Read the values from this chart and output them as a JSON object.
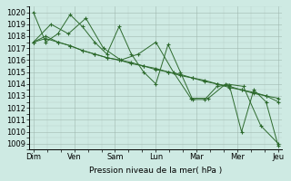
{
  "background_color": "#ceeae3",
  "grid_color": "#a0b8b0",
  "line_color": "#2d6a2d",
  "marker_color": "#2d6a2d",
  "xlabel": "Pression niveau de la mer( hPa )",
  "xtick_labels": [
    "Dim",
    "Ven",
    "Sam",
    "Lun",
    "Mar",
    "Mer",
    "Jeu"
  ],
  "ylim": [
    1008.5,
    1020.5
  ],
  "yticks": [
    1009,
    1010,
    1011,
    1012,
    1013,
    1014,
    1015,
    1016,
    1017,
    1018,
    1019,
    1020
  ],
  "lines": [
    [
      1020.0,
      1017.5,
      1018.2,
      1019.8,
      1018.8,
      1017.5,
      1016.5,
      1018.8,
      1016.5,
      1015.0,
      1014.0,
      1017.3,
      1015.0,
      1012.7,
      1012.7,
      1013.8,
      1013.9,
      1010.0,
      1013.5,
      1012.5,
      1008.8
    ],
    [
      1017.5,
      1019.0,
      1018.2,
      1019.5,
      1017.0,
      1016.0,
      1016.5,
      1017.5,
      1015.0,
      1012.8,
      1012.8,
      1014.0,
      1013.8,
      1010.5,
      1009.0
    ],
    [
      1017.5,
      1018.0,
      1017.5,
      1017.2,
      1016.8,
      1016.5,
      1016.2,
      1016.0,
      1015.7,
      1015.5,
      1015.2,
      1015.0,
      1014.7,
      1014.5,
      1014.2,
      1014.0,
      1013.7,
      1013.5,
      1013.2,
      1013.0,
      1012.5
    ],
    [
      1017.5,
      1017.8,
      1017.5,
      1017.2,
      1016.8,
      1016.5,
      1016.2,
      1016.0,
      1015.8,
      1015.5,
      1015.3,
      1015.0,
      1014.8,
      1014.5,
      1014.3,
      1014.0,
      1013.8,
      1013.5,
      1013.3,
      1013.0,
      1012.8
    ]
  ],
  "n_per_day": 3,
  "n_days": 7
}
